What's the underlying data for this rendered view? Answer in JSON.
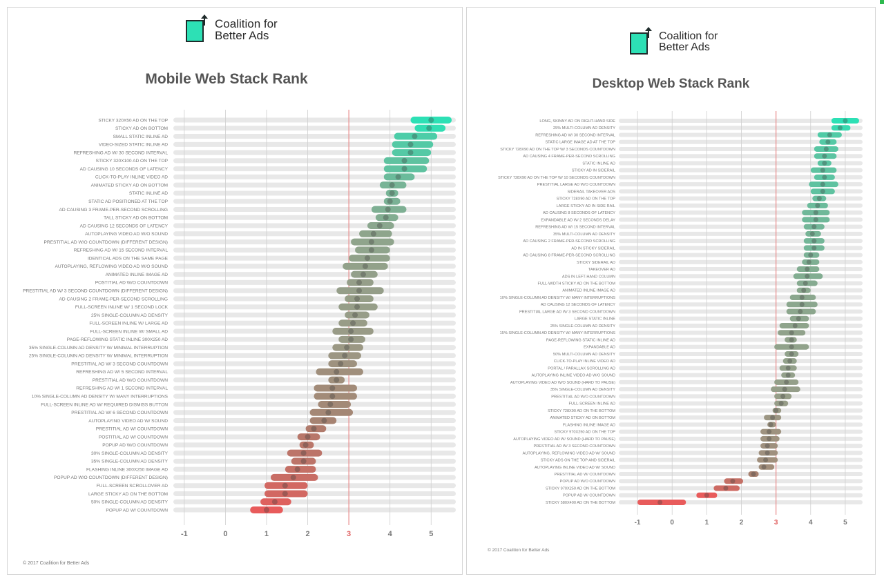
{
  "colors": {
    "good": "#2de0b5",
    "bad": "#e85b5b",
    "threshold": "#e88a8a",
    "track": "#e8e8e8",
    "grid": "#cfcfcf"
  },
  "logo": {
    "line1": "Coalition for",
    "line2": "Better Ads"
  },
  "copyright": "© 2017 Coalition for Better Ads",
  "chart_data": [
    {
      "type": "range",
      "title": "Mobile Web Stack Rank",
      "x_ticks": [
        -1,
        0,
        1,
        2,
        3,
        4,
        5
      ],
      "threshold": 3,
      "xlim": [
        -1.4,
        5.6
      ],
      "items": [
        {
          "label": "STICKY 320X50 AD ON THE TOP",
          "lo": 4.5,
          "mid": 5.0,
          "hi": 5.5
        },
        {
          "label": "STICKY AD ON BOTTOM",
          "lo": 4.6,
          "mid": 4.95,
          "hi": 5.35
        },
        {
          "label": "SMALL STATIC INLINE AD",
          "lo": 4.1,
          "mid": 4.6,
          "hi": 5.15
        },
        {
          "label": "VIDEO-SIZED STATIC INLINE AD",
          "lo": 4.05,
          "mid": 4.5,
          "hi": 5.05
        },
        {
          "label": "REFRESHING AD W/ 30 SECOND INTERVAL",
          "lo": 4.05,
          "mid": 4.5,
          "hi": 5.0
        },
        {
          "label": "STICKY 320X100 AD ON THE TOP",
          "lo": 3.85,
          "mid": 4.35,
          "hi": 4.95
        },
        {
          "label": "AD CAUSING 10 SECONDS OF LATENCY",
          "lo": 3.85,
          "mid": 4.35,
          "hi": 4.9
        },
        {
          "label": "CLICK-TO-PLAY INLINE VIDEO AD",
          "lo": 3.85,
          "mid": 4.2,
          "hi": 4.6
        },
        {
          "label": "ANIMATED STICKY AD ON BOTTOM",
          "lo": 3.75,
          "mid": 4.05,
          "hi": 4.4
        },
        {
          "label": "STATIC INLINE AD",
          "lo": 3.9,
          "mid": 4.05,
          "hi": 4.2
        },
        {
          "label": "STATIC AD POSITIONED AT THE TOP",
          "lo": 3.85,
          "mid": 4.0,
          "hi": 4.25
        },
        {
          "label": "AD CAUSING 3 FRAME-PER-SECOND SCROLLING",
          "lo": 3.55,
          "mid": 3.95,
          "hi": 4.4
        },
        {
          "label": "TALL STICKY AD ON BOTTOM",
          "lo": 3.65,
          "mid": 3.9,
          "hi": 4.2
        },
        {
          "label": "AD CAUSING 12 SECONDS OF LATENCY",
          "lo": 3.45,
          "mid": 3.75,
          "hi": 4.1
        },
        {
          "label": "AUTOPLAYING VIDEO AD W/O SOUND",
          "lo": 3.25,
          "mid": 3.6,
          "hi": 4.05
        },
        {
          "label": "PRESTITIAL AD W/O COUNTDOWN (DIFFERENT DESIGN)",
          "lo": 3.05,
          "mid": 3.55,
          "hi": 4.1
        },
        {
          "label": "REFRESHING AD W/ 15 SECOND INTERVAL",
          "lo": 3.15,
          "mid": 3.55,
          "hi": 4.0
        },
        {
          "label": "IDENTICAL ADS ON THE SAME PAGE",
          "lo": 3.0,
          "mid": 3.45,
          "hi": 4.0
        },
        {
          "label": "AUTOPLAYING, REFLOWING VIDEO AD W/O SOUND",
          "lo": 2.85,
          "mid": 3.4,
          "hi": 3.95
        },
        {
          "label": "ANIMATED INLINE IMAGE AD",
          "lo": 3.05,
          "mid": 3.35,
          "hi": 3.7
        },
        {
          "label": "POSTITIAL AD W/O COUNTDOWN",
          "lo": 2.95,
          "mid": 3.25,
          "hi": 3.6
        },
        {
          "label": "PRESTITIAL AD W/ 3 SECOND COUNTDOWN (DIFFERENT DESIGN)",
          "lo": 2.7,
          "mid": 3.25,
          "hi": 3.85
        },
        {
          "label": "AD CAUSING 2 FRAME-PER-SECOND SCROLLING",
          "lo": 2.9,
          "mid": 3.2,
          "hi": 3.6
        },
        {
          "label": "FULL-SCREEN INLINE W/ 1 SECOND LOCK",
          "lo": 2.75,
          "mid": 3.2,
          "hi": 3.7
        },
        {
          "label": "25% SINGLE-COLUMN AD DENSITY",
          "lo": 2.9,
          "mid": 3.15,
          "hi": 3.5
        },
        {
          "label": "FULL-SCREEN INLINE W/ LARGE AD",
          "lo": 2.75,
          "mid": 3.1,
          "hi": 3.45
        },
        {
          "label": "FULL-SCREEN INLINE W/ SMALL AD",
          "lo": 2.6,
          "mid": 3.05,
          "hi": 3.6
        },
        {
          "label": "PAGE-REFLOWING STATIC INLINE 300X250 AD",
          "lo": 2.75,
          "mid": 3.05,
          "hi": 3.4
        },
        {
          "label": "35% SINGLE-COLUMN AD DENSITY W/ MINIMAL INTERRUPTION",
          "lo": 2.6,
          "mid": 2.95,
          "hi": 3.35
        },
        {
          "label": "25% SINGLE-COLUMN AD DENSITY W/ MINIMAL INTERRUPTION",
          "lo": 2.5,
          "mid": 2.9,
          "hi": 3.3
        },
        {
          "label": "PRESTITIAL AD W/ 3 SECOND COUNTDOWN",
          "lo": 2.5,
          "mid": 2.8,
          "hi": 3.2
        },
        {
          "label": "REFRESHING AD W/ 5 SECOND INTERVAL",
          "lo": 2.2,
          "mid": 2.7,
          "hi": 3.35
        },
        {
          "label": "PRESTITIAL AD W/O COUNTDOWN",
          "lo": 2.5,
          "mid": 2.7,
          "hi": 2.9
        },
        {
          "label": "REFRESHING AD W/ 1 SECOND INTERVAL",
          "lo": 2.15,
          "mid": 2.6,
          "hi": 3.2
        },
        {
          "label": "10% SINGLE-COLUMN AD DENSITY W/ MANY INTERRUPTIONS",
          "lo": 2.15,
          "mid": 2.6,
          "hi": 3.2
        },
        {
          "label": "FULL-SCREEN INLINE AD W/ REQUIRED DISMISS BUTTON",
          "lo": 2.25,
          "mid": 2.55,
          "hi": 3.05
        },
        {
          "label": "PRESTITIAL AD W/ 6 SECOND COUNTDOWN",
          "lo": 2.05,
          "mid": 2.5,
          "hi": 3.1
        },
        {
          "label": "AUTOPLAYING VIDEO AD W/ SOUND",
          "lo": 2.05,
          "mid": 2.4,
          "hi": 2.7
        },
        {
          "label": "PRESTITIAL AD W/ COUNTDOWN",
          "lo": 1.95,
          "mid": 2.15,
          "hi": 2.45
        },
        {
          "label": "POSTITIAL AD W/ COUNTDOWN",
          "lo": 1.75,
          "mid": 2.0,
          "hi": 2.3
        },
        {
          "label": "POPUP AD W/O COUNTDOWN",
          "lo": 1.8,
          "mid": 1.95,
          "hi": 2.15
        },
        {
          "label": "30% SINGLE-COLUMN AD DENSITY",
          "lo": 1.5,
          "mid": 1.9,
          "hi": 2.35
        },
        {
          "label": "35% SINGLE-COLUMN AD DENSITY",
          "lo": 1.6,
          "mid": 1.9,
          "hi": 2.2
        },
        {
          "label": "FLASHING INLINE 300X250 IMAGE AD",
          "lo": 1.45,
          "mid": 1.75,
          "hi": 2.2
        },
        {
          "label": "POPUP AD W/O COUNTDOWN (DIFFERENT DESIGN)",
          "lo": 1.1,
          "mid": 1.65,
          "hi": 2.25
        },
        {
          "label": "FULL-SCREEN SCROLLOVER AD",
          "lo": 0.95,
          "mid": 1.45,
          "hi": 2.0
        },
        {
          "label": "LARGE STICKY AD ON THE BOTTOM",
          "lo": 0.95,
          "mid": 1.45,
          "hi": 2.0
        },
        {
          "label": "50% SINGLE-COLUMN AD DENSITY",
          "lo": 0.85,
          "mid": 1.2,
          "hi": 1.6
        },
        {
          "label": "POPUP AD W/ COUNTDOWN",
          "lo": 0.6,
          "mid": 1.0,
          "hi": 1.4
        }
      ]
    },
    {
      "type": "range",
      "title": "Desktop Web Stack Rank",
      "x_ticks": [
        -1,
        0,
        1,
        2,
        3,
        4,
        5
      ],
      "threshold": 3,
      "xlim": [
        -1.4,
        5.5
      ],
      "items": [
        {
          "label": "LONG, SKINNY AD ON RIGHT-HAND SIDE",
          "lo": 4.6,
          "mid": 5.0,
          "hi": 5.4
        },
        {
          "label": "25% MULTI-COLUMN AD DENSITY",
          "lo": 4.6,
          "mid": 4.85,
          "hi": 5.15
        },
        {
          "label": "REFRESHING AD W/ 30 SECOND INTERVAL",
          "lo": 4.2,
          "mid": 4.55,
          "hi": 4.9
        },
        {
          "label": "STATIC LARGE IMAGE AD AT THE TOP",
          "lo": 4.25,
          "mid": 4.5,
          "hi": 4.75
        },
        {
          "label": "STICKY 728X90 AD ON THE TOP W/ 3 SECONDS COUNTDOWN",
          "lo": 4.1,
          "mid": 4.45,
          "hi": 4.8
        },
        {
          "label": "AD CAUSING 4 FRAME-PER-SECOND SCROLLING",
          "lo": 4.1,
          "mid": 4.4,
          "hi": 4.75
        },
        {
          "label": "STATIC INLINE AD",
          "lo": 4.2,
          "mid": 4.4,
          "hi": 4.6
        },
        {
          "label": "STICKY AD IN SIDERAIL",
          "lo": 4.0,
          "mid": 4.35,
          "hi": 4.75
        },
        {
          "label": "STICKY 728X90 AD ON THE TOP W/ 10 SECONDS COUNTDOWN",
          "lo": 4.1,
          "mid": 4.4,
          "hi": 4.7
        },
        {
          "label": "PRESTITIAL LARGE AD W/O COUNTDOWN",
          "lo": 3.95,
          "mid": 4.35,
          "hi": 4.8
        },
        {
          "label": "SIDERAIL TAKEOVER ADS",
          "lo": 4.0,
          "mid": 4.35,
          "hi": 4.7
        },
        {
          "label": "STICKY 728X90 AD ON THE TOP",
          "lo": 4.05,
          "mid": 4.25,
          "hi": 4.45
        },
        {
          "label": "LARGE STICKY AD IN SIDE RAIL",
          "lo": 3.9,
          "mid": 4.2,
          "hi": 4.5
        },
        {
          "label": "AD CAUSING 8 SECONDS OF LATENCY",
          "lo": 3.75,
          "mid": 4.15,
          "hi": 4.55
        },
        {
          "label": "EXPANDABLE AD W/ 2 SECONDS DELAY",
          "lo": 3.75,
          "mid": 4.15,
          "hi": 4.55
        },
        {
          "label": "REFRESHING AD W/ 15 SECOND INTERVAL",
          "lo": 3.8,
          "mid": 4.1,
          "hi": 4.4
        },
        {
          "label": "35% MULTI-COLUMN AD DENSITY",
          "lo": 3.85,
          "mid": 4.05,
          "hi": 4.3
        },
        {
          "label": "AD CAUSING 2 FRAME-PER-SECOND SCROLLING",
          "lo": 3.8,
          "mid": 4.1,
          "hi": 4.4
        },
        {
          "label": "AD IN STICKY SIDERAIL",
          "lo": 3.8,
          "mid": 4.1,
          "hi": 4.4
        },
        {
          "label": "AD CAUSING 8 FRAME-PER-SECOND SCROLLING",
          "lo": 3.8,
          "mid": 4.0,
          "hi": 4.25
        },
        {
          "label": "STICKY SIDERAIL AD",
          "lo": 3.75,
          "mid": 3.95,
          "hi": 4.25
        },
        {
          "label": "TAKEOVER AD",
          "lo": 3.6,
          "mid": 3.9,
          "hi": 4.25
        },
        {
          "label": "ADS IN LEFT-HAND COLUMN",
          "lo": 3.5,
          "mid": 3.9,
          "hi": 4.35
        },
        {
          "label": "FULL-WIDTH STICKY AD ON THE BOTTOM",
          "lo": 3.6,
          "mid": 3.85,
          "hi": 4.2
        },
        {
          "label": "ANIMATED INLINE IMAGE AD",
          "lo": 3.6,
          "mid": 3.8,
          "hi": 4.0
        },
        {
          "label": "10% SINGLE-COLUMN AD DENSITY W/ MANY INTERRUPTIONS",
          "lo": 3.4,
          "mid": 3.75,
          "hi": 4.15
        },
        {
          "label": "AD CAUSING 12 SECONDS OF LATENCY",
          "lo": 3.3,
          "mid": 3.75,
          "hi": 4.2
        },
        {
          "label": "PRESTITIAL LARGE AD W/ 3 SECOND COUNTDOWN",
          "lo": 3.3,
          "mid": 3.7,
          "hi": 4.15
        },
        {
          "label": "LARGE STATIC INLINE",
          "lo": 3.4,
          "mid": 3.65,
          "hi": 3.95
        },
        {
          "label": "25% SINGLE-COLUMN AD DENSITY",
          "lo": 3.1,
          "mid": 3.55,
          "hi": 3.95
        },
        {
          "label": "15% SINGLE-COLUMN AD DENSITY W/ MANY INTERRUPTIONS",
          "lo": 3.05,
          "mid": 3.45,
          "hi": 3.85
        },
        {
          "label": "PAGE-REFLOWING STATIC INLINE AD",
          "lo": 3.25,
          "mid": 3.45,
          "hi": 3.6
        },
        {
          "label": "EXPANDABLE AD",
          "lo": 2.95,
          "mid": 3.45,
          "hi": 3.95
        },
        {
          "label": "50% MULTI-COLUMN AD DENSITY",
          "lo": 3.25,
          "mid": 3.45,
          "hi": 3.65
        },
        {
          "label": "CLICK-TO-PLAY INLINE VIDEO AD",
          "lo": 3.2,
          "mid": 3.4,
          "hi": 3.6
        },
        {
          "label": "PORTAL / PARALLAX SCROLLING AD",
          "lo": 3.1,
          "mid": 3.35,
          "hi": 3.6
        },
        {
          "label": "AUTOPLAYING INLINE VIDEO AD W/O SOUND",
          "lo": 3.15,
          "mid": 3.35,
          "hi": 3.55
        },
        {
          "label": "AUTOPLAYING VIDEO AD W/O SOUND (HARD TO PAUSE)",
          "lo": 2.95,
          "mid": 3.3,
          "hi": 3.65
        },
        {
          "label": "35% SINGLE-COLUMN AD DENSITY",
          "lo": 2.85,
          "mid": 3.25,
          "hi": 3.7
        },
        {
          "label": "PRESTITIAL AD W/O COUNTDOWN",
          "lo": 2.95,
          "mid": 3.2,
          "hi": 3.45
        },
        {
          "label": "FULL-SCREEN INLINE AD",
          "lo": 2.95,
          "mid": 3.15,
          "hi": 3.35
        },
        {
          "label": "STICKY 728X90 AD ON THE BOTTOM",
          "lo": 2.9,
          "mid": 3.0,
          "hi": 3.15
        },
        {
          "label": "ANIMATED STICKY AD ON BOTTOM",
          "lo": 2.65,
          "mid": 2.9,
          "hi": 3.15
        },
        {
          "label": "FLASHING INLINE IMAGE AD",
          "lo": 2.75,
          "mid": 2.85,
          "hi": 3.0
        },
        {
          "label": "STICKY 970X250 AD ON THE TOP",
          "lo": 2.55,
          "mid": 2.8,
          "hi": 3.15
        },
        {
          "label": "AUTOPLAYING VIDEO AD W/ SOUND (HARD TO PAUSE)",
          "lo": 2.55,
          "mid": 2.8,
          "hi": 3.1
        },
        {
          "label": "PRESTITIAL AD W/ 3 SECOND COUNTDOWN",
          "lo": 2.55,
          "mid": 2.75,
          "hi": 3.05
        },
        {
          "label": "AUTOPLAYING, REFLOWING VIDEO AD W/ SOUND",
          "lo": 2.5,
          "mid": 2.75,
          "hi": 3.05
        },
        {
          "label": "STICKY ADS ON THE TOP AND SIDERAIL",
          "lo": 2.45,
          "mid": 2.7,
          "hi": 3.05
        },
        {
          "label": "AUTOPLAYING INLINE VIDEO AD W/ SOUND",
          "lo": 2.5,
          "mid": 2.65,
          "hi": 2.95
        },
        {
          "label": "PRESTITIAL AD W/ COUNTDOWN",
          "lo": 2.2,
          "mid": 2.35,
          "hi": 2.5
        },
        {
          "label": "POPUP AD W/O COUNTDOWN",
          "lo": 1.5,
          "mid": 1.75,
          "hi": 2.05
        },
        {
          "label": "STICKY 970X250 AD ON THE BOTTOM",
          "lo": 1.2,
          "mid": 1.55,
          "hi": 1.95
        },
        {
          "label": "POPUP AD W/ COUNTDOWN",
          "lo": 0.7,
          "mid": 1.0,
          "hi": 1.3
        },
        {
          "label": "STICKY 580X400 AD ON THE BOTTOM",
          "lo": -1.0,
          "mid": -0.35,
          "hi": 0.4
        }
      ]
    }
  ]
}
